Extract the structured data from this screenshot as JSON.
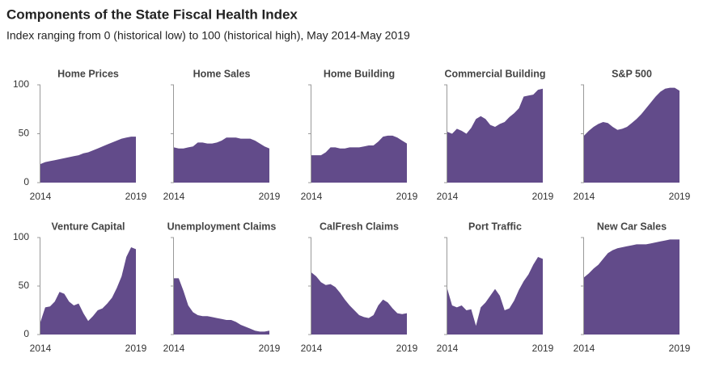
{
  "title": "Components of the State Fiscal Health Index",
  "subtitle": "Index ranging from 0 (historical low) to 100 (historical high), May 2014-May 2019",
  "chart_data": [
    {
      "type": "area",
      "title": "Home Prices",
      "color": "#624b8a",
      "x": [
        2014.4,
        2014.65,
        2014.9,
        2015.15,
        2015.4,
        2015.65,
        2015.9,
        2016.15,
        2016.4,
        2016.65,
        2016.9,
        2017.15,
        2017.4,
        2017.65,
        2017.9,
        2018.15,
        2018.4,
        2018.65,
        2018.9,
        2019.15,
        2019.4
      ],
      "values": [
        19,
        21,
        22,
        23,
        24,
        25,
        26,
        27,
        28,
        30,
        31,
        33,
        35,
        37,
        39,
        41,
        43,
        45,
        46,
        47,
        47
      ],
      "xlim": [
        2014.4,
        2019.4
      ],
      "xticks": [
        {
          "value": 2014.4,
          "label": "2014"
        },
        {
          "value": 2019.4,
          "label": "2019"
        }
      ],
      "ylim": [
        0,
        100
      ],
      "yticks": [
        0,
        50,
        100
      ]
    },
    {
      "type": "area",
      "title": "Home Sales",
      "color": "#624b8a",
      "x": [
        2014.4,
        2014.65,
        2014.9,
        2015.15,
        2015.4,
        2015.65,
        2015.9,
        2016.15,
        2016.4,
        2016.65,
        2016.9,
        2017.15,
        2017.4,
        2017.65,
        2017.9,
        2018.15,
        2018.4,
        2018.65,
        2018.9,
        2019.15,
        2019.4
      ],
      "values": [
        36,
        35,
        35,
        36,
        37,
        41,
        41,
        40,
        40,
        41,
        43,
        46,
        46,
        46,
        45,
        45,
        45,
        43,
        40,
        37,
        35
      ],
      "xlim": [
        2014.4,
        2019.4
      ],
      "xticks": [
        {
          "value": 2014.4,
          "label": "2014"
        },
        {
          "value": 2019.4,
          "label": "2019"
        }
      ],
      "ylim": [
        0,
        100
      ],
      "yticks": [
        0,
        50,
        100
      ]
    },
    {
      "type": "area",
      "title": "Home Building",
      "color": "#624b8a",
      "x": [
        2014.4,
        2014.65,
        2014.9,
        2015.15,
        2015.4,
        2015.65,
        2015.9,
        2016.15,
        2016.4,
        2016.65,
        2016.9,
        2017.15,
        2017.4,
        2017.65,
        2017.9,
        2018.15,
        2018.4,
        2018.65,
        2018.9,
        2019.15,
        2019.4
      ],
      "values": [
        28,
        28,
        28,
        31,
        36,
        36,
        35,
        35,
        36,
        36,
        36,
        37,
        38,
        38,
        42,
        47,
        48,
        48,
        46,
        43,
        40
      ],
      "xlim": [
        2014.4,
        2019.4
      ],
      "xticks": [
        {
          "value": 2014.4,
          "label": "2014"
        },
        {
          "value": 2019.4,
          "label": "2019"
        }
      ],
      "ylim": [
        0,
        100
      ],
      "yticks": [
        0,
        50,
        100
      ]
    },
    {
      "type": "area",
      "title": "Commercial Building",
      "color": "#624b8a",
      "x": [
        2014.4,
        2014.65,
        2014.9,
        2015.15,
        2015.4,
        2015.65,
        2015.9,
        2016.15,
        2016.4,
        2016.65,
        2016.9,
        2017.15,
        2017.4,
        2017.65,
        2017.9,
        2018.15,
        2018.4,
        2018.65,
        2018.9,
        2019.15,
        2019.4
      ],
      "values": [
        52,
        50,
        55,
        53,
        50,
        56,
        65,
        68,
        65,
        59,
        57,
        60,
        62,
        67,
        71,
        76,
        88,
        89,
        90,
        95,
        96
      ],
      "xlim": [
        2014.4,
        2019.4
      ],
      "xticks": [
        {
          "value": 2014.4,
          "label": "2014"
        },
        {
          "value": 2019.4,
          "label": "2019"
        }
      ],
      "ylim": [
        0,
        100
      ],
      "yticks": [
        0,
        50,
        100
      ]
    },
    {
      "type": "area",
      "title": "S&P 500",
      "color": "#624b8a",
      "x": [
        2014.4,
        2014.65,
        2014.9,
        2015.15,
        2015.4,
        2015.65,
        2015.9,
        2016.15,
        2016.4,
        2016.65,
        2016.9,
        2017.15,
        2017.4,
        2017.65,
        2017.9,
        2018.15,
        2018.4,
        2018.65,
        2018.9,
        2019.15,
        2019.4
      ],
      "values": [
        48,
        53,
        57,
        60,
        62,
        61,
        57,
        54,
        55,
        57,
        61,
        65,
        70,
        76,
        82,
        88,
        93,
        96,
        97,
        97,
        94
      ],
      "xlim": [
        2014.4,
        2019.4
      ],
      "xticks": [
        {
          "value": 2014.4,
          "label": "2014"
        },
        {
          "value": 2019.4,
          "label": "2019"
        }
      ],
      "ylim": [
        0,
        100
      ],
      "yticks": [
        0,
        50,
        100
      ]
    },
    {
      "type": "area",
      "title": "Venture Capital",
      "color": "#624b8a",
      "x": [
        2014.4,
        2014.65,
        2014.9,
        2015.15,
        2015.4,
        2015.65,
        2015.9,
        2016.15,
        2016.4,
        2016.65,
        2016.9,
        2017.15,
        2017.4,
        2017.65,
        2017.9,
        2018.15,
        2018.4,
        2018.65,
        2018.9,
        2019.15,
        2019.4
      ],
      "values": [
        13,
        28,
        29,
        34,
        44,
        42,
        34,
        30,
        32,
        22,
        14,
        19,
        25,
        27,
        32,
        38,
        48,
        60,
        80,
        90,
        88
      ],
      "xlim": [
        2014.4,
        2019.4
      ],
      "xticks": [
        {
          "value": 2014.4,
          "label": "2014"
        },
        {
          "value": 2019.4,
          "label": "2019"
        }
      ],
      "ylim": [
        0,
        100
      ],
      "yticks": [
        0,
        50,
        100
      ]
    },
    {
      "type": "area",
      "title": "Unemployment Claims",
      "color": "#624b8a",
      "x": [
        2014.4,
        2014.65,
        2014.9,
        2015.15,
        2015.4,
        2015.65,
        2015.9,
        2016.15,
        2016.4,
        2016.65,
        2016.9,
        2017.15,
        2017.4,
        2017.65,
        2017.9,
        2018.15,
        2018.4,
        2018.65,
        2018.9,
        2019.15,
        2019.4
      ],
      "values": [
        58,
        58,
        45,
        30,
        23,
        20,
        19,
        19,
        18,
        17,
        16,
        15,
        15,
        13,
        10,
        8,
        6,
        4,
        3,
        3,
        4
      ],
      "xlim": [
        2014.4,
        2019.4
      ],
      "xticks": [
        {
          "value": 2014.4,
          "label": "2014"
        },
        {
          "value": 2019.4,
          "label": "2019"
        }
      ],
      "ylim": [
        0,
        100
      ],
      "yticks": [
        0,
        50,
        100
      ]
    },
    {
      "type": "area",
      "title": "CalFresh Claims",
      "color": "#624b8a",
      "x": [
        2014.4,
        2014.65,
        2014.9,
        2015.15,
        2015.4,
        2015.65,
        2015.9,
        2016.15,
        2016.4,
        2016.65,
        2016.9,
        2017.15,
        2017.4,
        2017.65,
        2017.9,
        2018.15,
        2018.4,
        2018.65,
        2018.9,
        2019.15,
        2019.4
      ],
      "values": [
        64,
        60,
        54,
        51,
        52,
        49,
        43,
        36,
        30,
        25,
        20,
        18,
        17,
        20,
        30,
        36,
        33,
        27,
        22,
        21,
        22
      ],
      "xlim": [
        2014.4,
        2019.4
      ],
      "xticks": [
        {
          "value": 2014.4,
          "label": "2014"
        },
        {
          "value": 2019.4,
          "label": "2019"
        }
      ],
      "ylim": [
        0,
        100
      ],
      "yticks": [
        0,
        50,
        100
      ]
    },
    {
      "type": "area",
      "title": "Port Traffic",
      "color": "#624b8a",
      "x": [
        2014.4,
        2014.65,
        2014.9,
        2015.15,
        2015.4,
        2015.65,
        2015.9,
        2016.15,
        2016.4,
        2016.65,
        2016.9,
        2017.15,
        2017.4,
        2017.65,
        2017.9,
        2018.15,
        2018.4,
        2018.65,
        2018.9,
        2019.15,
        2019.4
      ],
      "values": [
        47,
        30,
        28,
        30,
        25,
        26,
        9,
        28,
        33,
        40,
        47,
        40,
        25,
        27,
        35,
        46,
        55,
        62,
        72,
        80,
        78
      ],
      "xlim": [
        2014.4,
        2019.4
      ],
      "xticks": [
        {
          "value": 2014.4,
          "label": "2014"
        },
        {
          "value": 2019.4,
          "label": "2019"
        }
      ],
      "ylim": [
        0,
        100
      ],
      "yticks": [
        0,
        50,
        100
      ]
    },
    {
      "type": "area",
      "title": "New Car Sales",
      "color": "#624b8a",
      "x": [
        2014.4,
        2014.65,
        2014.9,
        2015.15,
        2015.4,
        2015.65,
        2015.9,
        2016.15,
        2016.4,
        2016.65,
        2016.9,
        2017.15,
        2017.4,
        2017.65,
        2017.9,
        2018.15,
        2018.4,
        2018.65,
        2018.9,
        2019.15,
        2019.4
      ],
      "values": [
        59,
        63,
        68,
        72,
        78,
        84,
        87,
        89,
        90,
        91,
        92,
        93,
        93,
        93,
        94,
        95,
        96,
        97,
        98,
        98,
        98
      ],
      "xlim": [
        2014.4,
        2019.4
      ],
      "xticks": [
        {
          "value": 2014.4,
          "label": "2014"
        },
        {
          "value": 2019.4,
          "label": "2019"
        }
      ],
      "ylim": [
        0,
        100
      ],
      "yticks": [
        0,
        50,
        100
      ]
    }
  ]
}
